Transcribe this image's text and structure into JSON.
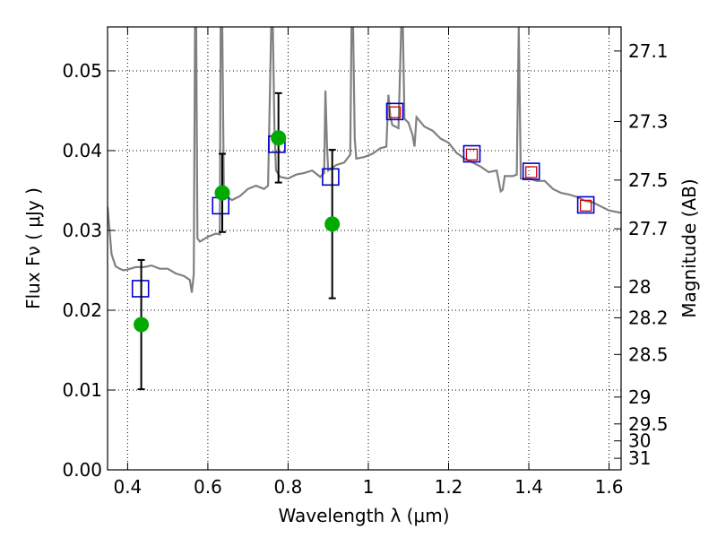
{
  "chart_data": {
    "type": "scatter",
    "title": "",
    "xlabel": "Wavelength  λ (μm)",
    "ylabel": "Flux  Fν  ( μJy )",
    "y2label": "Magnitude (AB)",
    "xlim": [
      0.35,
      1.63
    ],
    "ylim": [
      0.0,
      0.0555
    ],
    "grid": true,
    "x_ticks": [
      0.4,
      0.6,
      0.8,
      1.0,
      1.2,
      1.4,
      1.6
    ],
    "x_tick_labels": [
      "0.4",
      "0.6",
      "0.8",
      "1",
      "1.2",
      "1.4",
      "1.6"
    ],
    "y_ticks": [
      0.0,
      0.01,
      0.02,
      0.03,
      0.04,
      0.05
    ],
    "y_tick_labels": [
      "0.00",
      "0.01",
      "0.02",
      "0.03",
      "0.04",
      "0.05"
    ],
    "y2_ticks": [
      {
        "mag": 27.1,
        "label": "27.1"
      },
      {
        "mag": 27.3,
        "label": "27.3"
      },
      {
        "mag": 27.5,
        "label": "27.5"
      },
      {
        "mag": 27.7,
        "label": "27.7"
      },
      {
        "mag": 28,
        "label": "28"
      },
      {
        "mag": 28.2,
        "label": "28.2"
      },
      {
        "mag": 28.5,
        "label": "28.5"
      },
      {
        "mag": 29,
        "label": "29"
      },
      {
        "mag": 29.5,
        "label": "29.5"
      },
      {
        "mag": 30,
        "label": "30"
      },
      {
        "mag": 31,
        "label": "31"
      }
    ],
    "series": [
      {
        "kind": "line",
        "color": "#808080",
        "x": [
          0.35,
          0.36,
          0.37,
          0.38,
          0.39,
          0.4,
          0.42,
          0.44,
          0.46,
          0.48,
          0.5,
          0.52,
          0.54,
          0.555,
          0.56,
          0.565,
          0.568,
          0.571,
          0.574,
          0.58,
          0.6,
          0.62,
          0.63,
          0.632,
          0.636,
          0.64,
          0.66,
          0.68,
          0.7,
          0.72,
          0.74,
          0.75,
          0.758,
          0.762,
          0.766,
          0.77,
          0.78,
          0.8,
          0.82,
          0.84,
          0.86,
          0.88,
          0.89,
          0.893,
          0.897,
          0.9,
          0.92,
          0.94,
          0.955,
          0.958,
          0.962,
          0.966,
          0.97,
          0.99,
          1.01,
          1.03,
          1.045,
          1.05,
          1.055,
          1.06,
          1.075,
          1.082,
          1.086,
          1.09,
          1.1,
          1.11,
          1.115,
          1.12,
          1.14,
          1.16,
          1.18,
          1.2,
          1.22,
          1.24,
          1.26,
          1.28,
          1.3,
          1.32,
          1.33,
          1.335,
          1.34,
          1.36,
          1.37,
          1.375,
          1.38,
          1.4,
          1.42,
          1.44,
          1.46,
          1.48,
          1.5,
          1.52,
          1.54,
          1.56,
          1.58,
          1.6,
          1.63
        ],
        "y": [
          0.033,
          0.027,
          0.0255,
          0.0252,
          0.025,
          0.0251,
          0.0254,
          0.0254,
          0.0256,
          0.0252,
          0.0252,
          0.0246,
          0.0243,
          0.0238,
          0.0222,
          0.0245,
          0.0555,
          0.0555,
          0.029,
          0.0286,
          0.0292,
          0.0296,
          0.0295,
          0.0555,
          0.0555,
          0.0345,
          0.0338,
          0.0343,
          0.0352,
          0.0356,
          0.0352,
          0.0356,
          0.0555,
          0.0555,
          0.043,
          0.0375,
          0.0367,
          0.0365,
          0.037,
          0.0372,
          0.0375,
          0.0367,
          0.0372,
          0.0475,
          0.0405,
          0.0375,
          0.0382,
          0.0385,
          0.0395,
          0.0555,
          0.0555,
          0.0415,
          0.039,
          0.0392,
          0.0396,
          0.0403,
          0.0405,
          0.047,
          0.0442,
          0.0432,
          0.0428,
          0.0555,
          0.0555,
          0.044,
          0.0435,
          0.042,
          0.0405,
          0.0442,
          0.043,
          0.0425,
          0.0415,
          0.041,
          0.0397,
          0.039,
          0.0385,
          0.038,
          0.0373,
          0.0375,
          0.0349,
          0.0351,
          0.0368,
          0.0368,
          0.037,
          0.0555,
          0.0365,
          0.0365,
          0.0362,
          0.0362,
          0.0352,
          0.0347,
          0.0345,
          0.0342,
          0.0337,
          0.0335,
          0.033,
          0.0325,
          0.0322
        ]
      },
      {
        "kind": "square",
        "color": "#0000cc",
        "x": [
          0.432,
          0.632,
          0.772,
          0.906,
          1.066,
          1.258,
          1.406,
          1.542
        ],
        "y": [
          0.0227,
          0.0331,
          0.0408,
          0.0367,
          0.0449,
          0.0396,
          0.0374,
          0.0332
        ]
      },
      {
        "kind": "square",
        "color": "#cc0000",
        "x": [
          1.066,
          1.258,
          1.406,
          1.542
        ],
        "y": [
          0.0448,
          0.0395,
          0.0373,
          0.0331
        ]
      },
      {
        "kind": "errorbar",
        "color": "#00aa00",
        "x": [
          0.434,
          0.636,
          0.776,
          0.91
        ],
        "y": [
          0.0182,
          0.0347,
          0.0416,
          0.0308
        ],
        "err": [
          0.0081,
          0.0049,
          0.0056,
          0.0093
        ]
      }
    ]
  }
}
